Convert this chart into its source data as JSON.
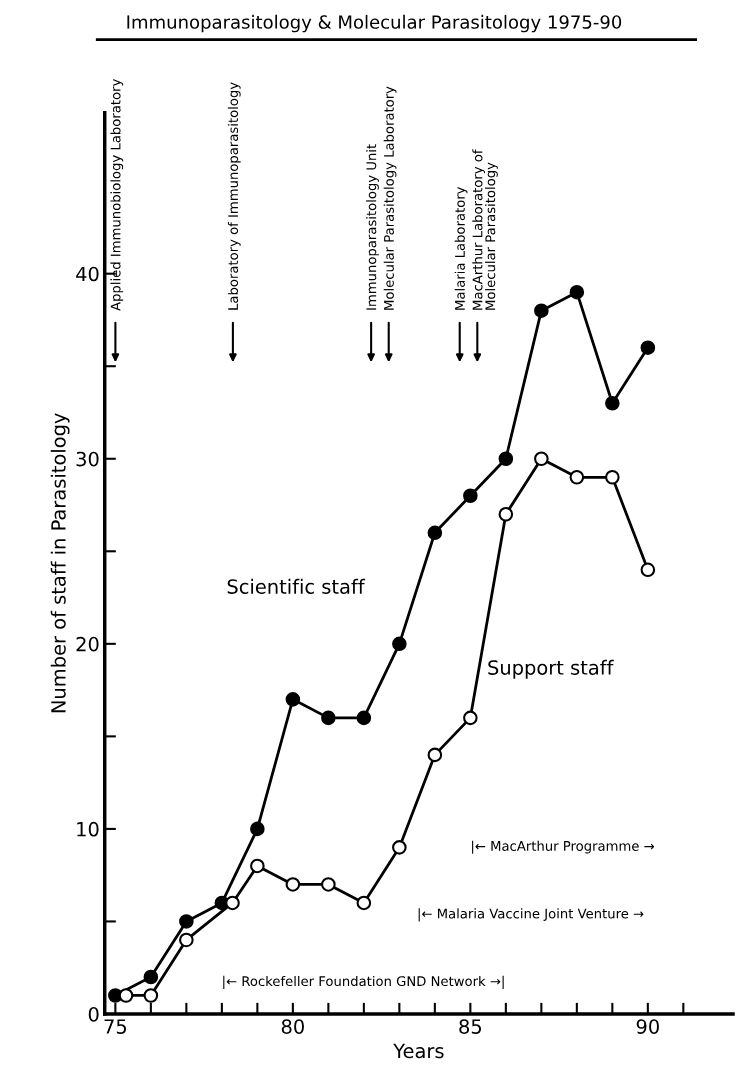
{
  "chart_data": {
    "type": "line",
    "title": "Immunoparasitology & Molecular Parasitology 1975-90",
    "xlabel": "Years",
    "ylabel": "Number of staff in Parasitology",
    "x": [
      75,
      76,
      77,
      78,
      79,
      80,
      81,
      82,
      83,
      84,
      85,
      86,
      87,
      88,
      89,
      90
    ],
    "series": [
      {
        "name": "Scientific staff",
        "color": "#000000",
        "values": [
          1,
          2,
          5,
          6,
          10,
          17,
          16,
          16,
          20,
          26,
          28,
          30,
          38,
          39,
          33,
          36
        ]
      },
      {
        "name": "Support staff",
        "color": "#ffffff",
        "x": [
          75.3,
          76,
          77,
          78.3,
          79,
          80,
          81,
          82,
          83,
          84,
          85,
          86,
          87,
          88,
          89,
          90
        ],
        "values": [
          1,
          1,
          4,
          6,
          8,
          7,
          7,
          6,
          9,
          14,
          16,
          27,
          30,
          29,
          29,
          24
        ]
      }
    ],
    "marker": "circle",
    "line_style": "solid",
    "grid": false,
    "legend": false,
    "xlim": [
      74.7,
      92.4
    ],
    "ylim": [
      0,
      48.7
    ],
    "xticks": [
      75,
      {
        "value": 76,
        "label": null
      },
      {
        "value": 77,
        "label": null
      },
      {
        "value": 78,
        "label": null
      },
      {
        "value": 79,
        "label": null
      },
      80,
      {
        "value": 81,
        "label": null
      },
      {
        "value": 82,
        "label": null
      },
      {
        "value": 83,
        "label": null
      },
      {
        "value": 84,
        "label": null
      },
      85,
      {
        "value": 86,
        "label": null
      },
      {
        "value": 87,
        "label": null
      },
      {
        "value": 88,
        "label": null
      },
      {
        "value": 89,
        "label": null
      },
      90,
      {
        "value": 91,
        "label": null
      }
    ],
    "yticks": [
      0,
      {
        "value": 5,
        "label": null
      },
      10,
      {
        "value": 15,
        "label": null
      },
      20,
      {
        "value": 25,
        "label": null
      },
      30,
      {
        "value": 35,
        "label": null
      },
      40
    ],
    "annotations": [
      "Applied Immunobiology Laboratory",
      "Laboratory of Immunoparasitology",
      "Immunoparasitology Unit",
      "Molecular Parasitology Laboratory",
      "Malaria Laboratory",
      "MacArthur Laboratory of\nMolecular Parasitology",
      "|← MacArthur Programme →",
      "|← Malaria Vaccine Joint Venture →",
      "|← Rockefeller Foundation GND Network →|"
    ]
  }
}
